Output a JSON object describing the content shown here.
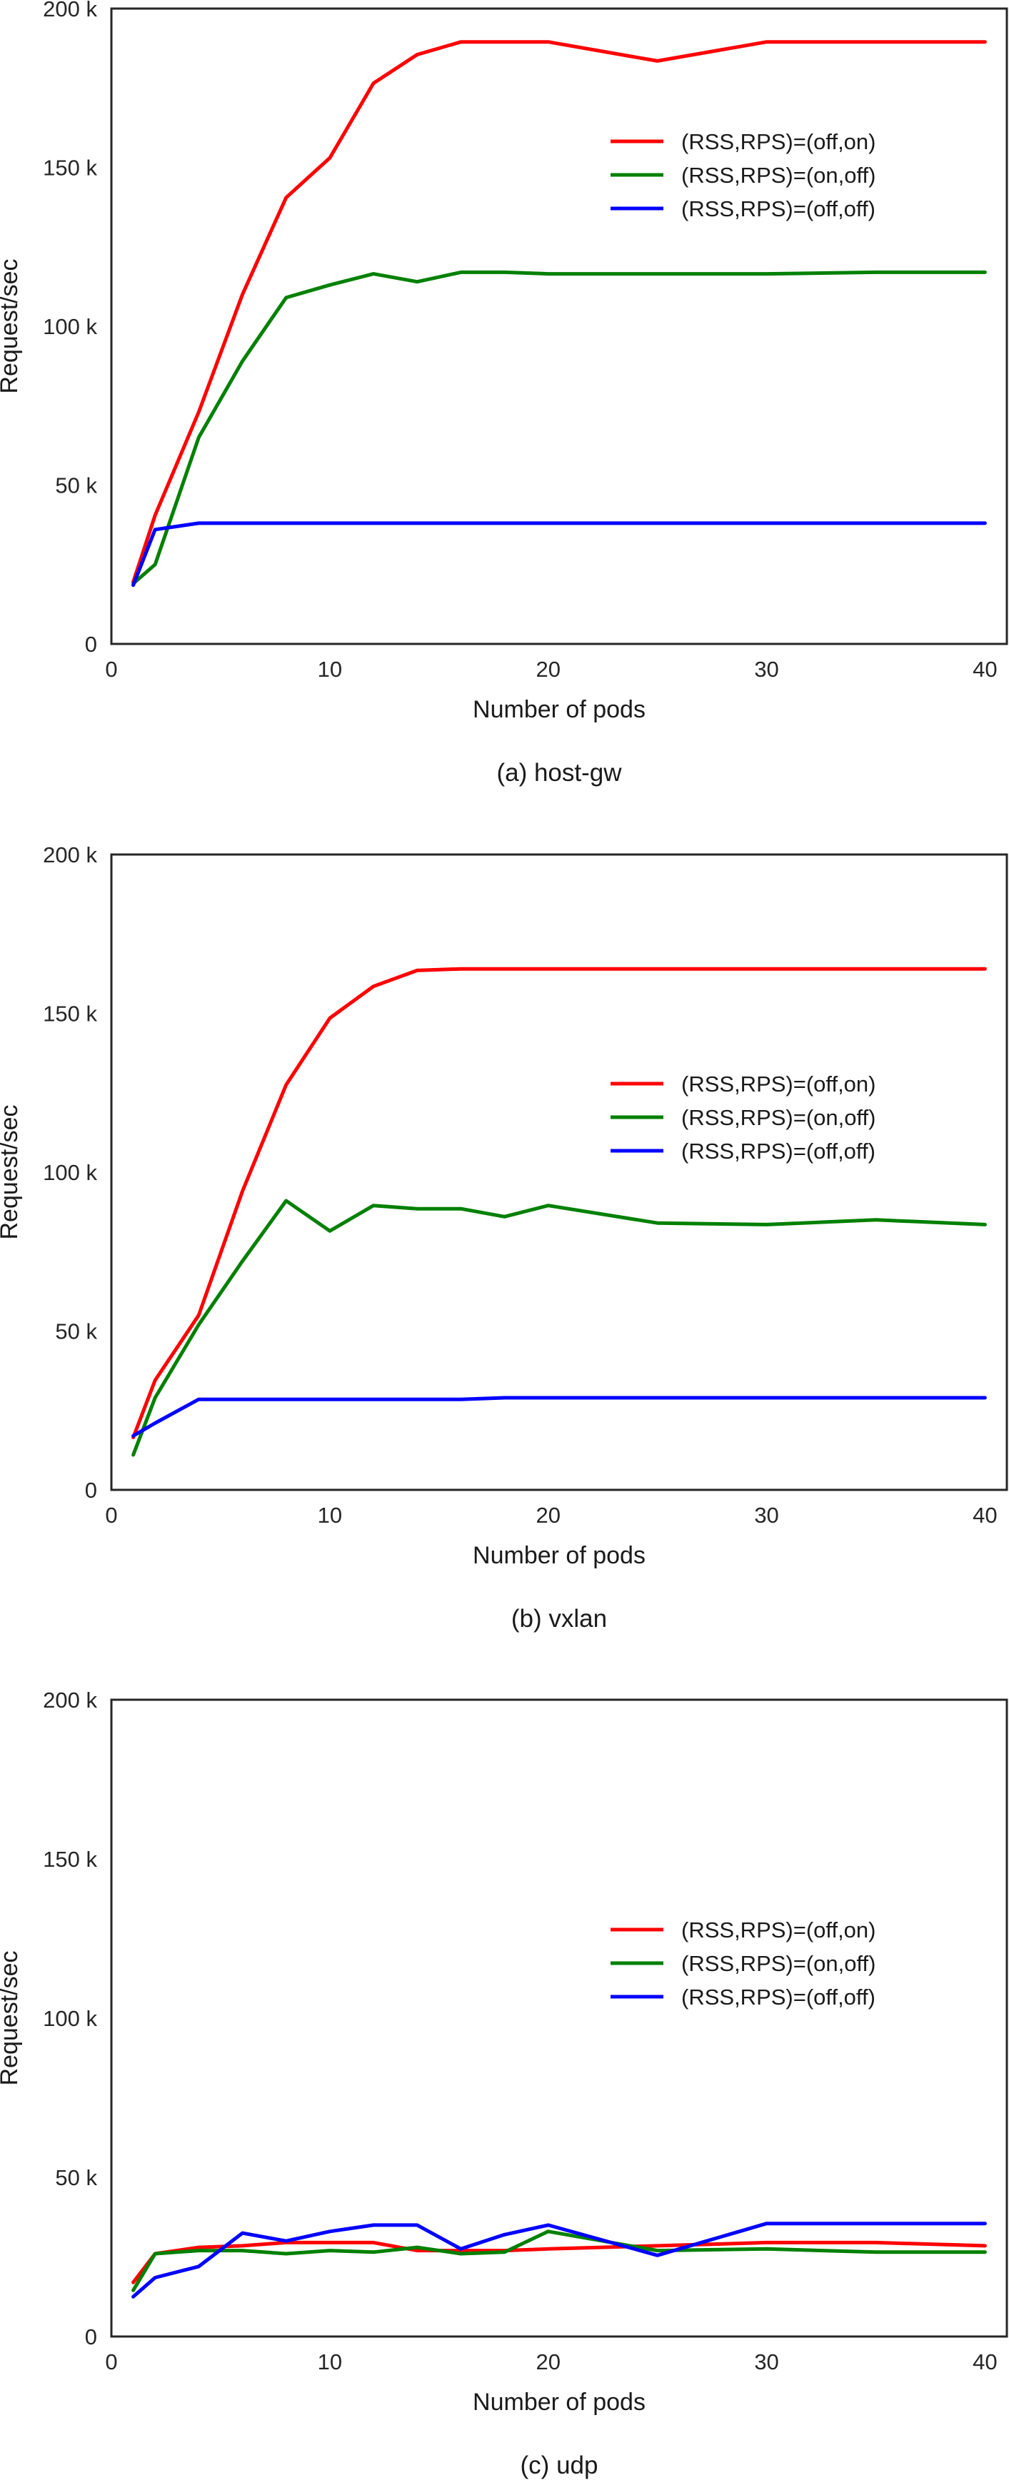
{
  "chart_data": [
    {
      "type": "line",
      "caption": "(a) host-gw",
      "xlabel": "Number of pods",
      "ylabel": "Request/sec",
      "xlim": [
        0,
        41
      ],
      "ylim": [
        0,
        200000
      ],
      "xticks": [
        0,
        10,
        20,
        30,
        40
      ],
      "xtick_labels": [
        "0",
        "10",
        "20",
        "30",
        "40"
      ],
      "yticks": [
        0,
        50000,
        100000,
        150000,
        200000
      ],
      "ytick_labels": [
        "0",
        "50 k",
        "100 k",
        "150 k",
        "200 k"
      ],
      "grid": false,
      "legend_position": "upper right",
      "series": [
        {
          "name": "(RSS,RPS)=(off,on)",
          "color": "#ff0000",
          "x": [
            1,
            2,
            4,
            6,
            8,
            10,
            12,
            14,
            16,
            18,
            20,
            25,
            30,
            35,
            40
          ],
          "y": [
            19500,
            40500,
            73000,
            110000,
            140500,
            153000,
            176500,
            185500,
            189500,
            189500,
            189500,
            183500,
            189500,
            189500,
            189500
          ]
        },
        {
          "name": "(RSS,RPS)=(on,off)",
          "color": "#008000",
          "x": [
            1,
            2,
            4,
            6,
            8,
            10,
            12,
            14,
            16,
            18,
            20,
            25,
            30,
            35,
            40
          ],
          "y": [
            19000,
            25000,
            65000,
            89000,
            109000,
            113000,
            116500,
            114000,
            117000,
            117000,
            116500,
            116500,
            116500,
            117000,
            117000
          ]
        },
        {
          "name": "(RSS,RPS)=(off,off)",
          "color": "#0000ff",
          "x": [
            1,
            2,
            4,
            6,
            8,
            10,
            12,
            14,
            16,
            18,
            20,
            25,
            30,
            35,
            40
          ],
          "y": [
            18500,
            36000,
            38000,
            38000,
            38000,
            38000,
            38000,
            38000,
            38000,
            38000,
            38000,
            38000,
            38000,
            38000,
            38000
          ]
        }
      ]
    },
    {
      "type": "line",
      "caption": "(b) vxlan",
      "xlabel": "Number of pods",
      "ylabel": "Request/sec",
      "xlim": [
        0,
        41
      ],
      "ylim": [
        0,
        200000
      ],
      "xticks": [
        0,
        10,
        20,
        30,
        40
      ],
      "xtick_labels": [
        "0",
        "10",
        "20",
        "30",
        "40"
      ],
      "yticks": [
        0,
        50000,
        100000,
        150000,
        200000
      ],
      "ytick_labels": [
        "0",
        "50 k",
        "100 k",
        "150 k",
        "200 k"
      ],
      "grid": false,
      "legend_position": "center right",
      "series": [
        {
          "name": "(RSS,RPS)=(off,on)",
          "color": "#ff0000",
          "x": [
            1,
            2,
            4,
            6,
            8,
            10,
            12,
            14,
            16,
            18,
            20,
            25,
            30,
            35,
            40
          ],
          "y": [
            16500,
            34500,
            55000,
            94000,
            127500,
            148500,
            158500,
            163500,
            164000,
            164000,
            164000,
            164000,
            164000,
            164000,
            164000
          ]
        },
        {
          "name": "(RSS,RPS)=(on,off)",
          "color": "#008000",
          "x": [
            1,
            2,
            4,
            6,
            8,
            10,
            12,
            14,
            16,
            18,
            20,
            25,
            30,
            35,
            40
          ],
          "y": [
            11000,
            29000,
            52000,
            72000,
            91000,
            81500,
            89500,
            88500,
            88500,
            86000,
            89500,
            84000,
            83500,
            85000,
            83500
          ]
        },
        {
          "name": "(RSS,RPS)=(off,off)",
          "color": "#0000ff",
          "x": [
            1,
            2,
            4,
            6,
            8,
            10,
            12,
            14,
            16,
            18,
            20,
            25,
            30,
            35,
            40
          ],
          "y": [
            17000,
            21000,
            28500,
            28500,
            28500,
            28500,
            28500,
            28500,
            28500,
            29000,
            29000,
            29000,
            29000,
            29000,
            29000
          ]
        }
      ]
    },
    {
      "type": "line",
      "caption": "(c) udp",
      "xlabel": "Number of pods",
      "ylabel": "Request/sec",
      "xlim": [
        0,
        41
      ],
      "ylim": [
        0,
        200000
      ],
      "xticks": [
        0,
        10,
        20,
        30,
        40
      ],
      "xtick_labels": [
        "0",
        "10",
        "20",
        "30",
        "40"
      ],
      "yticks": [
        0,
        50000,
        100000,
        150000,
        200000
      ],
      "ytick_labels": [
        "0",
        "50 k",
        "100 k",
        "150 k",
        "200 k"
      ],
      "grid": false,
      "legend_position": "center right",
      "series": [
        {
          "name": "(RSS,RPS)=(off,on)",
          "color": "#ff0000",
          "x": [
            1,
            2,
            4,
            6,
            8,
            10,
            12,
            14,
            16,
            18,
            20,
            25,
            30,
            35,
            40
          ],
          "y": [
            17000,
            26000,
            28000,
            28500,
            29500,
            29500,
            29500,
            27000,
            27000,
            27000,
            27500,
            28500,
            29500,
            29500,
            28500
          ]
        },
        {
          "name": "(RSS,RPS)=(on,off)",
          "color": "#008000",
          "x": [
            1,
            2,
            4,
            6,
            8,
            10,
            12,
            14,
            16,
            18,
            20,
            25,
            30,
            35,
            40
          ],
          "y": [
            14500,
            26000,
            27000,
            27000,
            26000,
            27000,
            26500,
            28000,
            26000,
            26500,
            33000,
            27000,
            27500,
            26500,
            26500
          ]
        },
        {
          "name": "(RSS,RPS)=(off,off)",
          "color": "#0000ff",
          "x": [
            1,
            2,
            4,
            6,
            8,
            10,
            12,
            14,
            16,
            18,
            20,
            25,
            30,
            35,
            40
          ],
          "y": [
            12500,
            18500,
            22000,
            32500,
            30000,
            33000,
            35000,
            35000,
            27500,
            32000,
            35000,
            25500,
            35500,
            35500,
            35500
          ]
        }
      ]
    }
  ]
}
